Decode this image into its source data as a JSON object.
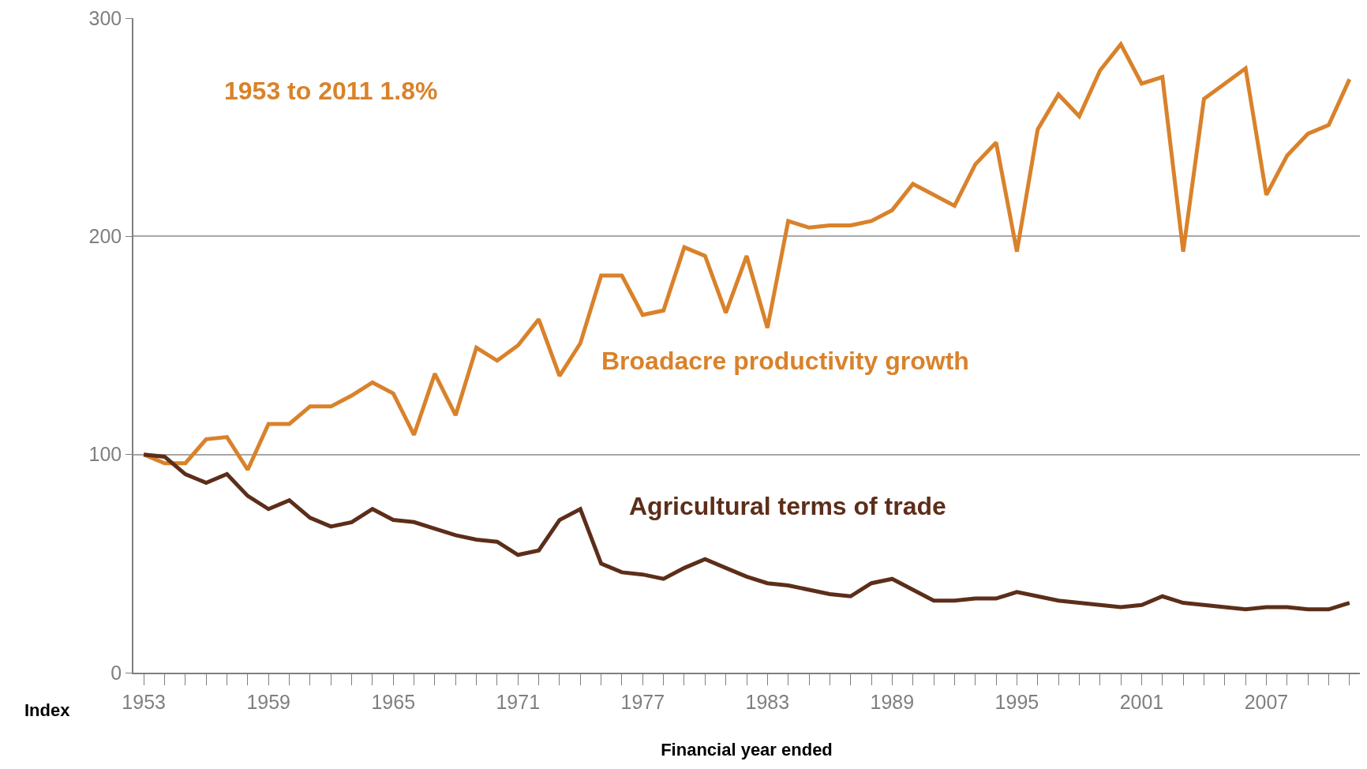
{
  "chart_data": {
    "type": "line",
    "xlabel": "Financial year ended",
    "ylabel": "Index",
    "x": [
      1953,
      1954,
      1955,
      1956,
      1957,
      1958,
      1959,
      1960,
      1961,
      1962,
      1963,
      1964,
      1965,
      1966,
      1967,
      1968,
      1969,
      1970,
      1971,
      1972,
      1973,
      1974,
      1975,
      1976,
      1977,
      1978,
      1979,
      1980,
      1981,
      1982,
      1983,
      1984,
      1985,
      1986,
      1987,
      1988,
      1989,
      1990,
      1991,
      1992,
      1993,
      1994,
      1995,
      1996,
      1997,
      1998,
      1999,
      2000,
      2001,
      2002,
      2003,
      2004,
      2005,
      2006,
      2007,
      2008,
      2009,
      2010,
      2011
    ],
    "series": [
      {
        "name": "Broadacre productivity growth",
        "color": "#d9822b",
        "values": [
          100,
          96,
          96,
          107,
          108,
          93,
          114,
          114,
          122,
          122,
          127,
          133,
          128,
          109,
          137,
          118,
          149,
          143,
          150,
          162,
          136,
          151,
          182,
          182,
          164,
          166,
          195,
          191,
          165,
          191,
          158,
          207,
          204,
          205,
          205,
          207,
          212,
          224,
          219,
          214,
          233,
          243,
          193,
          249,
          265,
          255,
          276,
          288,
          270,
          273,
          193,
          263,
          270,
          277,
          219,
          237,
          247,
          251,
          272
        ]
      },
      {
        "name": "Agricultural terms of trade",
        "color": "#5c2e1a",
        "values": [
          100,
          99,
          91,
          87,
          91,
          81,
          75,
          79,
          71,
          67,
          69,
          75,
          70,
          69,
          66,
          63,
          61,
          60,
          54,
          56,
          70,
          75,
          50,
          46,
          45,
          43,
          48,
          52,
          48,
          44,
          41,
          40,
          38,
          36,
          35,
          41,
          43,
          38,
          33,
          33,
          34,
          34,
          37,
          35,
          33,
          32,
          31,
          30,
          31,
          35,
          32,
          31,
          30,
          29,
          30,
          30,
          29,
          29,
          32
        ]
      }
    ],
    "annotations": [
      "1953 to 2011 1.8%"
    ],
    "xlim": [
      1952.5,
      2011.5
    ],
    "xticks": [
      1953,
      {
        "value": 1954,
        "label": null
      },
      {
        "value": 1955,
        "label": null
      },
      {
        "value": 1956,
        "label": null
      },
      {
        "value": 1957,
        "label": null
      },
      {
        "value": 1958,
        "label": null
      },
      1959,
      {
        "value": 1960,
        "label": null
      },
      {
        "value": 1961,
        "label": null
      },
      {
        "value": 1962,
        "label": null
      },
      {
        "value": 1963,
        "label": null
      },
      {
        "value": 1964,
        "label": null
      },
      1965,
      {
        "value": 1966,
        "label": null
      },
      {
        "value": 1967,
        "label": null
      },
      {
        "value": 1968,
        "label": null
      },
      {
        "value": 1969,
        "label": null
      },
      {
        "value": 1970,
        "label": null
      },
      1971,
      {
        "value": 1972,
        "label": null
      },
      {
        "value": 1973,
        "label": null
      },
      {
        "value": 1974,
        "label": null
      },
      {
        "value": 1975,
        "label": null
      },
      {
        "value": 1976,
        "label": null
      },
      1977,
      {
        "value": 1978,
        "label": null
      },
      {
        "value": 1979,
        "label": null
      },
      {
        "value": 1980,
        "label": null
      },
      {
        "value": 1981,
        "label": null
      },
      {
        "value": 1982,
        "label": null
      },
      1983,
      {
        "value": 1984,
        "label": null
      },
      {
        "value": 1985,
        "label": null
      },
      {
        "value": 1986,
        "label": null
      },
      {
        "value": 1987,
        "label": null
      },
      {
        "value": 1988,
        "label": null
      },
      1989,
      {
        "value": 1990,
        "label": null
      },
      {
        "value": 1991,
        "label": null
      },
      {
        "value": 1992,
        "label": null
      },
      {
        "value": 1993,
        "label": null
      },
      {
        "value": 1994,
        "label": null
      },
      1995,
      {
        "value": 1996,
        "label": null
      },
      {
        "value": 1997,
        "label": null
      },
      {
        "value": 1998,
        "label": null
      },
      {
        "value": 1999,
        "label": null
      },
      {
        "value": 2000,
        "label": null
      },
      2001,
      {
        "value": 2002,
        "label": null
      },
      {
        "value": 2003,
        "label": null
      },
      {
        "value": 2004,
        "label": null
      },
      {
        "value": 2005,
        "label": null
      },
      {
        "value": 2006,
        "label": null
      },
      2007,
      {
        "value": 2008,
        "label": null
      },
      {
        "value": 2009,
        "label": null
      },
      {
        "value": 2010,
        "label": null
      },
      {
        "value": 2011,
        "label": null
      }
    ],
    "ylim": [
      0,
      300
    ],
    "yticks": [
      0,
      100,
      200,
      300
    ],
    "grid": "y",
    "legend": false,
    "marker": "none",
    "line_style": "solid"
  }
}
